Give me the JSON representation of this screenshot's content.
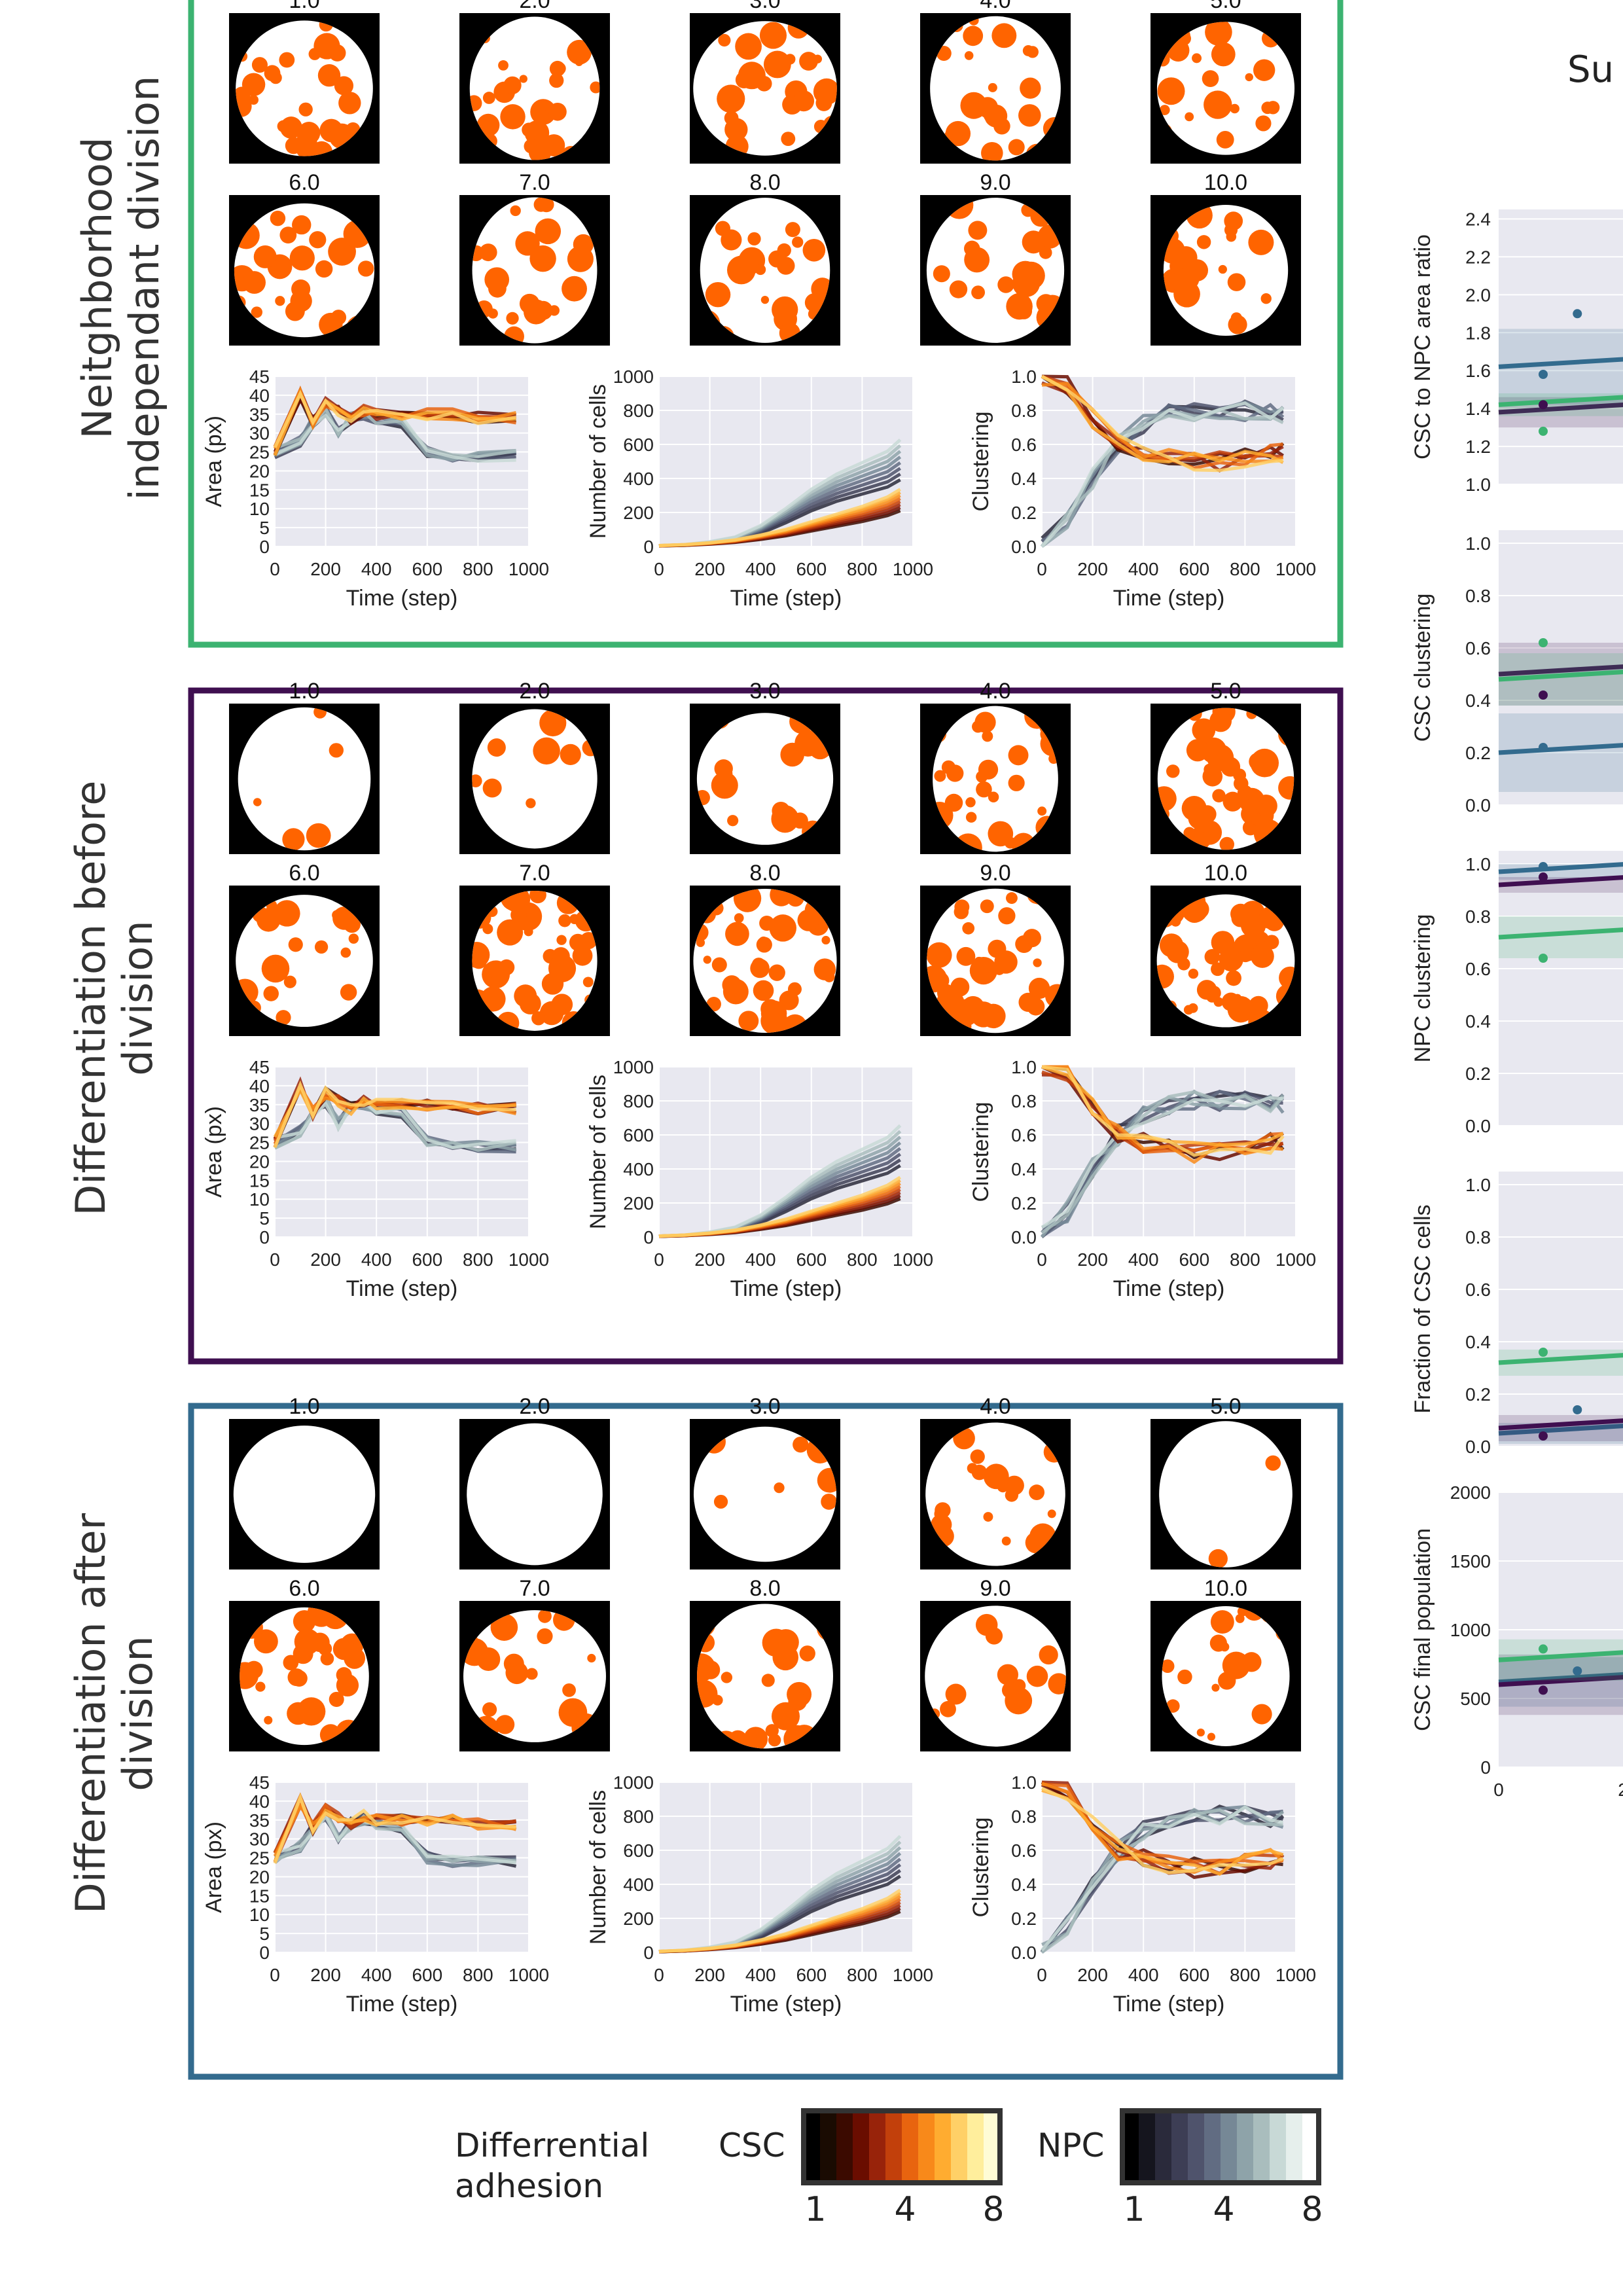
{
  "colors": {
    "panel_borders": [
      "#3cb371",
      "#3f0f50",
      "#336b8e"
    ],
    "sim_bg": "#000000",
    "sim_disc": "#ffffff",
    "sim_csc": "#ff6400",
    "plot_bg": "#e8e8f0",
    "grid": "#ffffff",
    "csc_colormap": [
      "#000000",
      "#1a0b02",
      "#3b0a00",
      "#6a0d00",
      "#98230a",
      "#c2400b",
      "#e8640f",
      "#f8891a",
      "#ffac30",
      "#ffd067",
      "#ffee9c",
      "#fffcd5"
    ],
    "npc_colormap": [
      "#000000",
      "#15151e",
      "#2a2a3b",
      "#3d3e55",
      "#4f536c",
      "#616c82",
      "#768896",
      "#8ea3a9",
      "#a9bdbd",
      "#c8d9d6",
      "#e6efec",
      "#ffffff"
    ],
    "summary_lines": [
      "#336b8e",
      "#3f0f50",
      "#3cb371"
    ]
  },
  "rows": [
    {
      "name": "Neitghborhood independant division",
      "label_lines": [
        "Neitghborhood",
        "independant division"
      ],
      "sim_labels": [
        "1.0",
        "2.0",
        "3.0",
        "4.0",
        "5.0",
        "6.0",
        "7.0",
        "8.0",
        "9.0",
        "10.0"
      ],
      "csc_fraction": [
        0.5,
        0.45,
        0.42,
        0.4,
        0.4,
        0.42,
        0.38,
        0.42,
        0.4,
        0.38
      ]
    },
    {
      "name": "Differentiation before division",
      "label_lines": [
        "Differentiation before",
        "division"
      ],
      "sim_labels": [
        "1.0",
        "2.0",
        "3.0",
        "4.0",
        "5.0",
        "6.0",
        "7.0",
        "8.0",
        "9.0",
        "10.0"
      ],
      "csc_fraction": [
        0.08,
        0.15,
        0.3,
        0.55,
        0.75,
        0.35,
        0.72,
        0.7,
        0.62,
        0.78
      ]
    },
    {
      "name": "Differentiation after division",
      "label_lines": [
        "Differentiation after",
        "division"
      ],
      "sim_labels": [
        "1.0",
        "2.0",
        "3.0",
        "4.0",
        "5.0",
        "6.0",
        "7.0",
        "8.0",
        "9.0",
        "10.0"
      ],
      "csc_fraction": [
        0.0,
        0.0,
        0.12,
        0.35,
        0.03,
        0.5,
        0.3,
        0.4,
        0.2,
        0.3
      ]
    }
  ],
  "chart_data": [
    {
      "type": "line",
      "id": "area",
      "xlabel": "Time (step)",
      "ylabel": "Area (px)",
      "xlim": [
        0,
        1000
      ],
      "ylim": [
        0,
        45
      ],
      "xticks": [
        "0",
        "200",
        "400",
        "600",
        "800",
        "1000"
      ],
      "yticks": [
        "0",
        "5",
        "10",
        "15",
        "20",
        "25",
        "30",
        "35",
        "40",
        "45"
      ],
      "x": [
        0,
        100,
        150,
        200,
        250,
        300,
        350,
        400,
        500,
        600,
        700,
        800,
        950
      ],
      "series_csc_template": [
        25,
        40,
        33,
        38,
        36,
        34,
        36,
        35,
        35,
        35,
        35,
        34,
        34
      ],
      "series_npc_template": [
        25,
        28,
        33,
        36,
        30,
        34,
        35,
        34,
        33,
        25,
        24,
        24,
        24
      ]
    },
    {
      "type": "line",
      "id": "cells",
      "xlabel": "Time (step)",
      "ylabel": "Number of cells",
      "xlim": [
        0,
        1000
      ],
      "ylim": [
        0,
        1000
      ],
      "xticks": [
        "0",
        "200",
        "400",
        "600",
        "800",
        "1000"
      ],
      "yticks": [
        "0",
        "200",
        "400",
        "600",
        "800",
        "1000"
      ],
      "x": [
        0,
        100,
        200,
        300,
        400,
        500,
        600,
        700,
        800,
        900,
        950
      ],
      "series_csc_template": [
        5,
        10,
        20,
        35,
        60,
        90,
        130,
        170,
        210,
        260,
        300
      ],
      "series_npc_template": [
        5,
        10,
        25,
        50,
        110,
        200,
        300,
        380,
        440,
        500,
        560
      ]
    },
    {
      "type": "line",
      "id": "clustering",
      "xlabel": "Time (step)",
      "ylabel": "Clustering",
      "xlim": [
        0,
        1000
      ],
      "ylim": [
        0,
        1.0
      ],
      "xticks": [
        "0",
        "200",
        "400",
        "600",
        "800",
        "1000"
      ],
      "yticks": [
        "0.0",
        "0.2",
        "0.4",
        "0.6",
        "0.8",
        "1.0"
      ],
      "x": [
        0,
        100,
        200,
        300,
        400,
        500,
        600,
        700,
        800,
        900,
        950
      ],
      "series_csc_template": [
        1.0,
        0.95,
        0.75,
        0.6,
        0.55,
        0.52,
        0.5,
        0.5,
        0.52,
        0.55,
        0.55
      ],
      "series_npc_template": [
        0.0,
        0.15,
        0.4,
        0.6,
        0.72,
        0.78,
        0.8,
        0.8,
        0.8,
        0.78,
        0.78
      ]
    }
  ],
  "summary": {
    "title_fragment": "Su",
    "panels": [
      {
        "ylabel": "CSC to NPC area ratio",
        "yticks": [
          "1.0",
          "1.2",
          "1.4",
          "1.6",
          "1.8",
          "2.0",
          "2.2",
          "2.4"
        ],
        "ylim": [
          1.0,
          2.45
        ],
        "lines": [
          {
            "y": 1.62,
            "band": 0.2
          },
          {
            "y": 1.38,
            "band": 0.08
          },
          {
            "y": 1.42,
            "band": 0.06
          }
        ],
        "points": [
          [
            0.4,
            1.58,
            0
          ],
          [
            0.4,
            1.42,
            1
          ],
          [
            0.4,
            1.28,
            2
          ],
          [
            0.95,
            1.9,
            0
          ]
        ]
      },
      {
        "ylabel": "CSC clustering",
        "yticks": [
          "0.0",
          "0.2",
          "0.4",
          "0.6",
          "0.8",
          "1.0"
        ],
        "ylim": [
          0,
          1.05
        ],
        "lines": [
          {
            "y": 0.2,
            "band": 0.15
          },
          {
            "y": 0.5,
            "band": 0.12
          },
          {
            "y": 0.48,
            "band": 0.1
          }
        ],
        "points": [
          [
            0.4,
            0.22,
            0
          ],
          [
            0.4,
            0.42,
            1
          ],
          [
            0.4,
            0.62,
            2
          ]
        ]
      },
      {
        "ylabel": "NPC clustering",
        "yticks": [
          "0.0",
          "0.2",
          "0.4",
          "0.6",
          "0.8",
          "1.0"
        ],
        "ylim": [
          0,
          1.05
        ],
        "lines": [
          {
            "y": 0.97,
            "band": 0.03
          },
          {
            "y": 0.92,
            "band": 0.03
          },
          {
            "y": 0.72,
            "band": 0.08
          }
        ],
        "points": [
          [
            0.4,
            0.99,
            0
          ],
          [
            0.4,
            0.95,
            1
          ],
          [
            0.4,
            0.64,
            2
          ]
        ]
      },
      {
        "ylabel": "Fraction of CSC cells",
        "yticks": [
          "0.0",
          "0.2",
          "0.4",
          "0.6",
          "0.8",
          "1.0"
        ],
        "ylim": [
          0,
          1.05
        ],
        "lines": [
          {
            "y": 0.05,
            "band": 0.04
          },
          {
            "y": 0.07,
            "band": 0.05
          },
          {
            "y": 0.32,
            "band": 0.05
          }
        ],
        "points": [
          [
            0.4,
            0.04,
            1
          ],
          [
            0.4,
            0.36,
            2
          ],
          [
            0.95,
            0.14,
            0
          ]
        ]
      },
      {
        "ylabel": "CSC final population",
        "yticks": [
          "0",
          "500",
          "1000",
          "1500",
          "2000"
        ],
        "ylim": [
          0,
          2000
        ],
        "xticks": [
          "0",
          "2"
        ],
        "lines": [
          {
            "y": 620,
            "band": 180
          },
          {
            "y": 600,
            "band": 220
          },
          {
            "y": 780,
            "band": 150
          }
        ],
        "points": [
          [
            0.4,
            560,
            1
          ],
          [
            0.4,
            860,
            2
          ],
          [
            0.95,
            700,
            0
          ]
        ]
      }
    ]
  },
  "legend": {
    "title_lines": [
      "Differrential",
      "adhesion"
    ],
    "csc_label": "CSC",
    "npc_label": "NPC",
    "tick_labels": [
      "1",
      "4",
      "8"
    ]
  }
}
